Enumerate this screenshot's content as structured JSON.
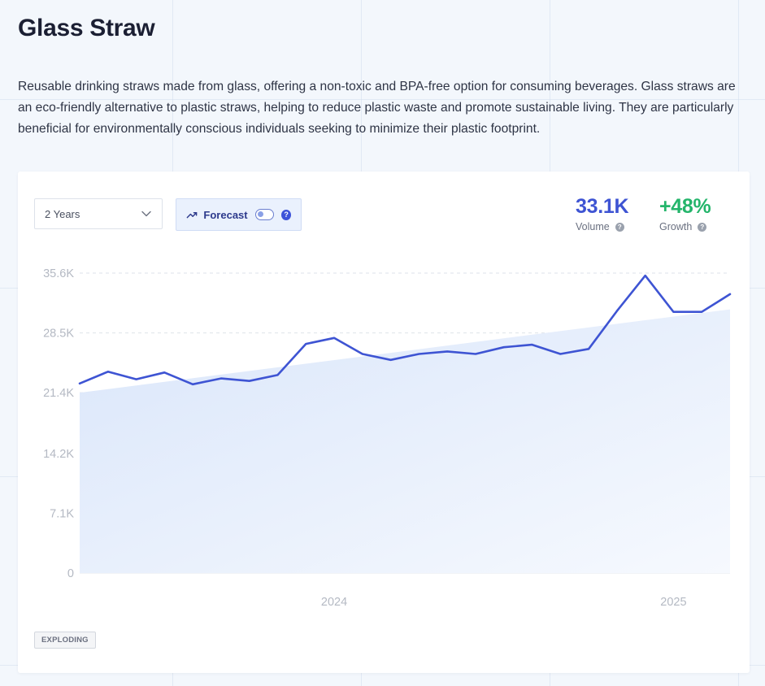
{
  "page": {
    "title": "Glass Straw",
    "description": "Reusable drinking straws made from glass, offering a non-toxic and BPA-free option for consuming beverages. Glass straws are an eco-friendly alternative to plastic straws, helping to reduce plastic waste and promote sustainable living. They are particularly beneficial for environmentally conscious individuals seeking to minimize their plastic footprint."
  },
  "controls": {
    "range_value": "2 Years",
    "forecast_label": "Forecast",
    "forecast_enabled": false
  },
  "stats": {
    "volume_value": "33.1K",
    "volume_label": "Volume",
    "growth_value": "+48%",
    "growth_label": "Growth"
  },
  "badge": "EXPLODING",
  "colors": {
    "line": "#3e54d3",
    "trend_fill": "#dde8fa",
    "volume": "#3e54d3",
    "growth": "#24b56b"
  },
  "icons": {
    "range_dropdown": "chevron-down-icon",
    "forecast": "trending-up-icon",
    "help": "question-icon"
  },
  "chart_data": {
    "type": "line",
    "title": "",
    "xlabel": "",
    "ylabel": "",
    "ylim": [
      0,
      35600
    ],
    "y_ticks": [
      0,
      7100,
      14200,
      21400,
      28500,
      35600
    ],
    "y_tick_labels": [
      "0",
      "7.1K",
      "14.2K",
      "21.4K",
      "28.5K",
      "35.6K"
    ],
    "x_tick_labels": [
      {
        "label": "2024",
        "index": 9
      },
      {
        "label": "2025",
        "index": 21
      }
    ],
    "grid": true,
    "legend": "none",
    "series": [
      {
        "values": [
          22500,
          23900,
          23000,
          23800,
          22400,
          23100,
          22800,
          23500,
          27200,
          27900,
          26000,
          25300,
          26000,
          26300,
          26000,
          26800,
          27100,
          26000,
          26600,
          31100,
          35300,
          31000,
          31000,
          33100
        ]
      }
    ],
    "trend": {
      "type": "area",
      "start": 21400,
      "end": 31300
    }
  }
}
